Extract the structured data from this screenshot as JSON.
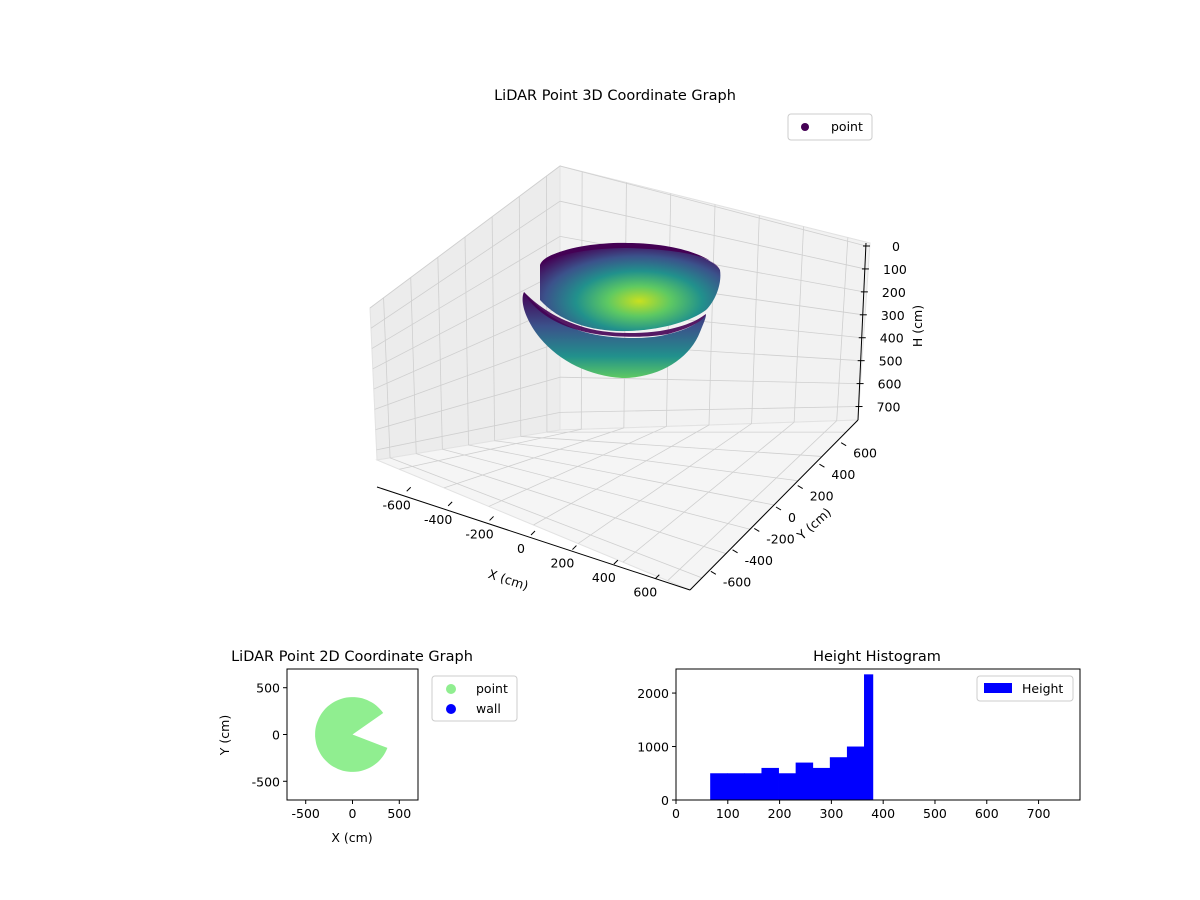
{
  "chart_data": [
    {
      "type": "scatter",
      "projection": "3d",
      "title": "LiDAR Point 3D Coordinate Graph",
      "xlabel": "X (cm)",
      "ylabel": "Y (cm)",
      "zlabel": "H (cm)",
      "xlim": [
        -700,
        700
      ],
      "ylim": [
        -700,
        700
      ],
      "zlim": [
        750,
        0
      ],
      "z_inverted": true,
      "xticks": [
        -600,
        -400,
        -200,
        0,
        200,
        400,
        600
      ],
      "yticks": [
        -600,
        -400,
        -200,
        0,
        200,
        400,
        600
      ],
      "zticks": [
        0,
        100,
        200,
        300,
        400,
        500,
        600,
        700
      ],
      "grid": true,
      "colormap": "viridis",
      "legend": {
        "position": "top-right",
        "entries": [
          {
            "label": "point",
            "color": "#440154"
          }
        ]
      },
      "surface": {
        "shape": "hemispherical bowl",
        "radius": 400,
        "rim_height": 60,
        "bottom_height": 380,
        "missing_wedge_deg": [
          -20,
          35
        ]
      }
    },
    {
      "type": "scatter",
      "title": "LiDAR Point 2D Coordinate Graph",
      "xlabel": "X (cm)",
      "ylabel": "Y (cm)",
      "xlim": [
        -700,
        700
      ],
      "ylim": [
        -700,
        700
      ],
      "xticks": [
        -500,
        0,
        500
      ],
      "yticks": [
        -500,
        0,
        500
      ],
      "legend": {
        "position": "outside-right",
        "entries": [
          {
            "label": "point",
            "color": "#90ee90"
          },
          {
            "label": "wall",
            "color": "#0000ff"
          }
        ]
      },
      "series": [
        {
          "name": "point",
          "color": "#90ee90",
          "shape": "disc",
          "radius": 400,
          "missing_wedge_deg": [
            -20,
            35
          ]
        },
        {
          "name": "wall",
          "color": "#0000ff",
          "values": []
        }
      ]
    },
    {
      "type": "bar",
      "title": "Height Histogram",
      "xlim": [
        0,
        780
      ],
      "ylim": [
        0,
        2450
      ],
      "xticks": [
        0,
        100,
        200,
        300,
        400,
        500,
        600,
        700
      ],
      "yticks": [
        0,
        1000,
        2000
      ],
      "legend": {
        "position": "top-right",
        "entries": [
          {
            "label": "Height",
            "color": "#0000ff"
          }
        ]
      },
      "series": [
        {
          "name": "Height",
          "color": "#0000ff"
        }
      ],
      "bins": [
        {
          "x0": 66,
          "x1": 99,
          "count": 500
        },
        {
          "x0": 99,
          "x1": 132,
          "count": 500
        },
        {
          "x0": 132,
          "x1": 165,
          "count": 500
        },
        {
          "x0": 165,
          "x1": 198,
          "count": 600
        },
        {
          "x0": 198,
          "x1": 231,
          "count": 500
        },
        {
          "x0": 231,
          "x1": 264,
          "count": 700
        },
        {
          "x0": 264,
          "x1": 297,
          "count": 600
        },
        {
          "x0": 297,
          "x1": 330,
          "count": 800
        },
        {
          "x0": 330,
          "x1": 363,
          "count": 1000
        },
        {
          "x0": 363,
          "x1": 380,
          "count": 2350
        }
      ]
    }
  ]
}
